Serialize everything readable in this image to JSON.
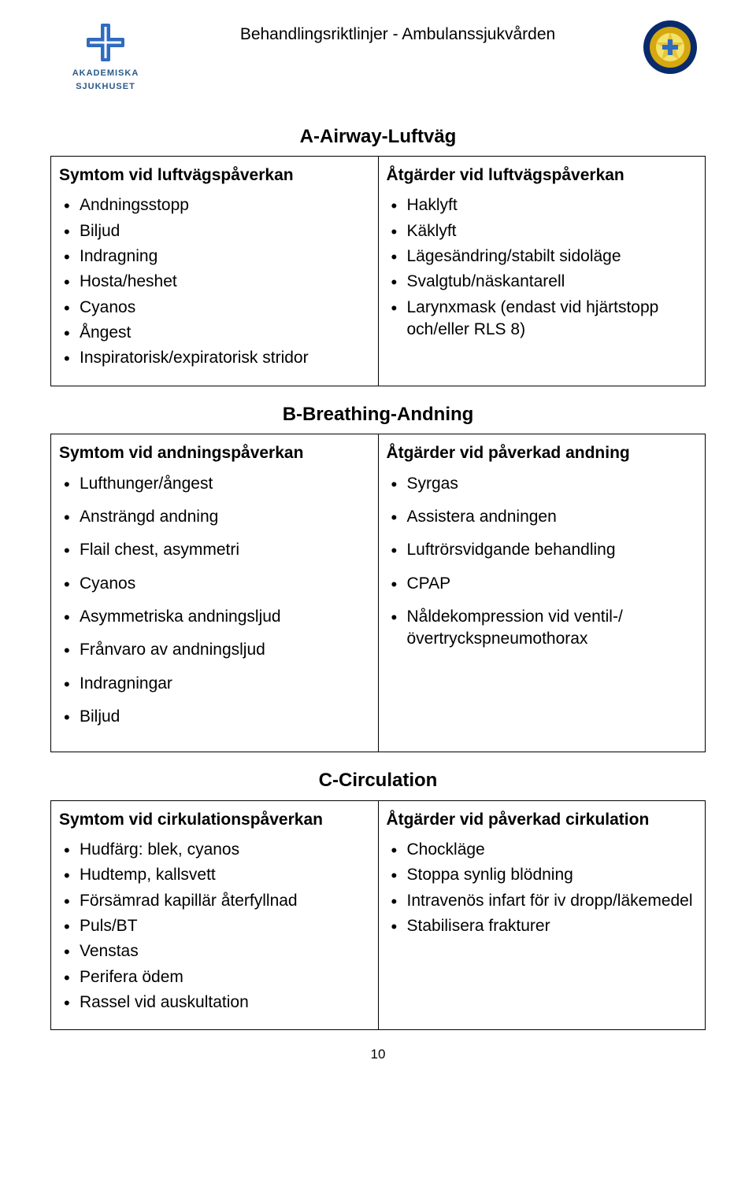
{
  "header": {
    "title": "Behandlingsriktlinjer - Ambulanssjukvården",
    "logo_left_main": "AKADEMISKA",
    "logo_left_sub": "SJUKHUSET"
  },
  "sections": {
    "a": {
      "title": "A-Airway-Luftväg",
      "left_head": "Symtom vid luftvägspåverkan",
      "left_items": [
        "Andningsstopp",
        "Biljud",
        "Indragning",
        "Hosta/heshet",
        "Cyanos",
        "Ångest",
        "Inspiratorisk/expiratorisk stridor"
      ],
      "right_head": "Åtgärder vid luftvägspåverkan",
      "right_items": [
        "Haklyft",
        "Käklyft",
        "Lägesändring/stabilt sidoläge",
        "Svalgtub/näskantarell",
        "Larynxmask (endast vid hjärtstopp och/eller RLS 8)"
      ]
    },
    "b": {
      "title": "B-Breathing-Andning",
      "left_head": "Symtom vid andningspåverkan",
      "left_items": [
        "Lufthunger/ångest",
        "Ansträngd andning",
        "Flail chest, asymmetri",
        "Cyanos",
        "Asymmetriska andningsljud",
        "Frånvaro av andningsljud",
        "Indragningar",
        "Biljud"
      ],
      "right_head": "Åtgärder vid påverkad andning",
      "right_items": [
        "Syrgas",
        "Assistera andningen",
        "Luftrörsvidgande behandling",
        "CPAP",
        "Nåldekompression vid ventil-/övertryckspneumothorax"
      ]
    },
    "c": {
      "title": "C-Circulation",
      "left_head": "Symtom vid cirkulationspåverkan",
      "left_items": [
        "Hudfärg: blek, cyanos",
        "Hudtemp, kallsvett",
        "Försämrad kapillär återfyllnad",
        "Puls/BT",
        "Venstas",
        "Perifera ödem",
        "Rassel vid auskultation"
      ],
      "right_head": "Åtgärder vid påverkad cirkulation",
      "right_items": [
        "Chockläge",
        "Stoppa synlig blödning",
        "Intravenös infart för iv dropp/läkemedel",
        "Stabilisera frakturer"
      ]
    }
  },
  "page_number": "10",
  "colors": {
    "text": "#000000",
    "border": "#000000",
    "logo_blue": "#2a5a8a",
    "badge_outer": "#0a2b6b",
    "badge_gold": "#d6a80f",
    "badge_center": "#f3e26b",
    "cross_blue": "#2f6bbf"
  }
}
